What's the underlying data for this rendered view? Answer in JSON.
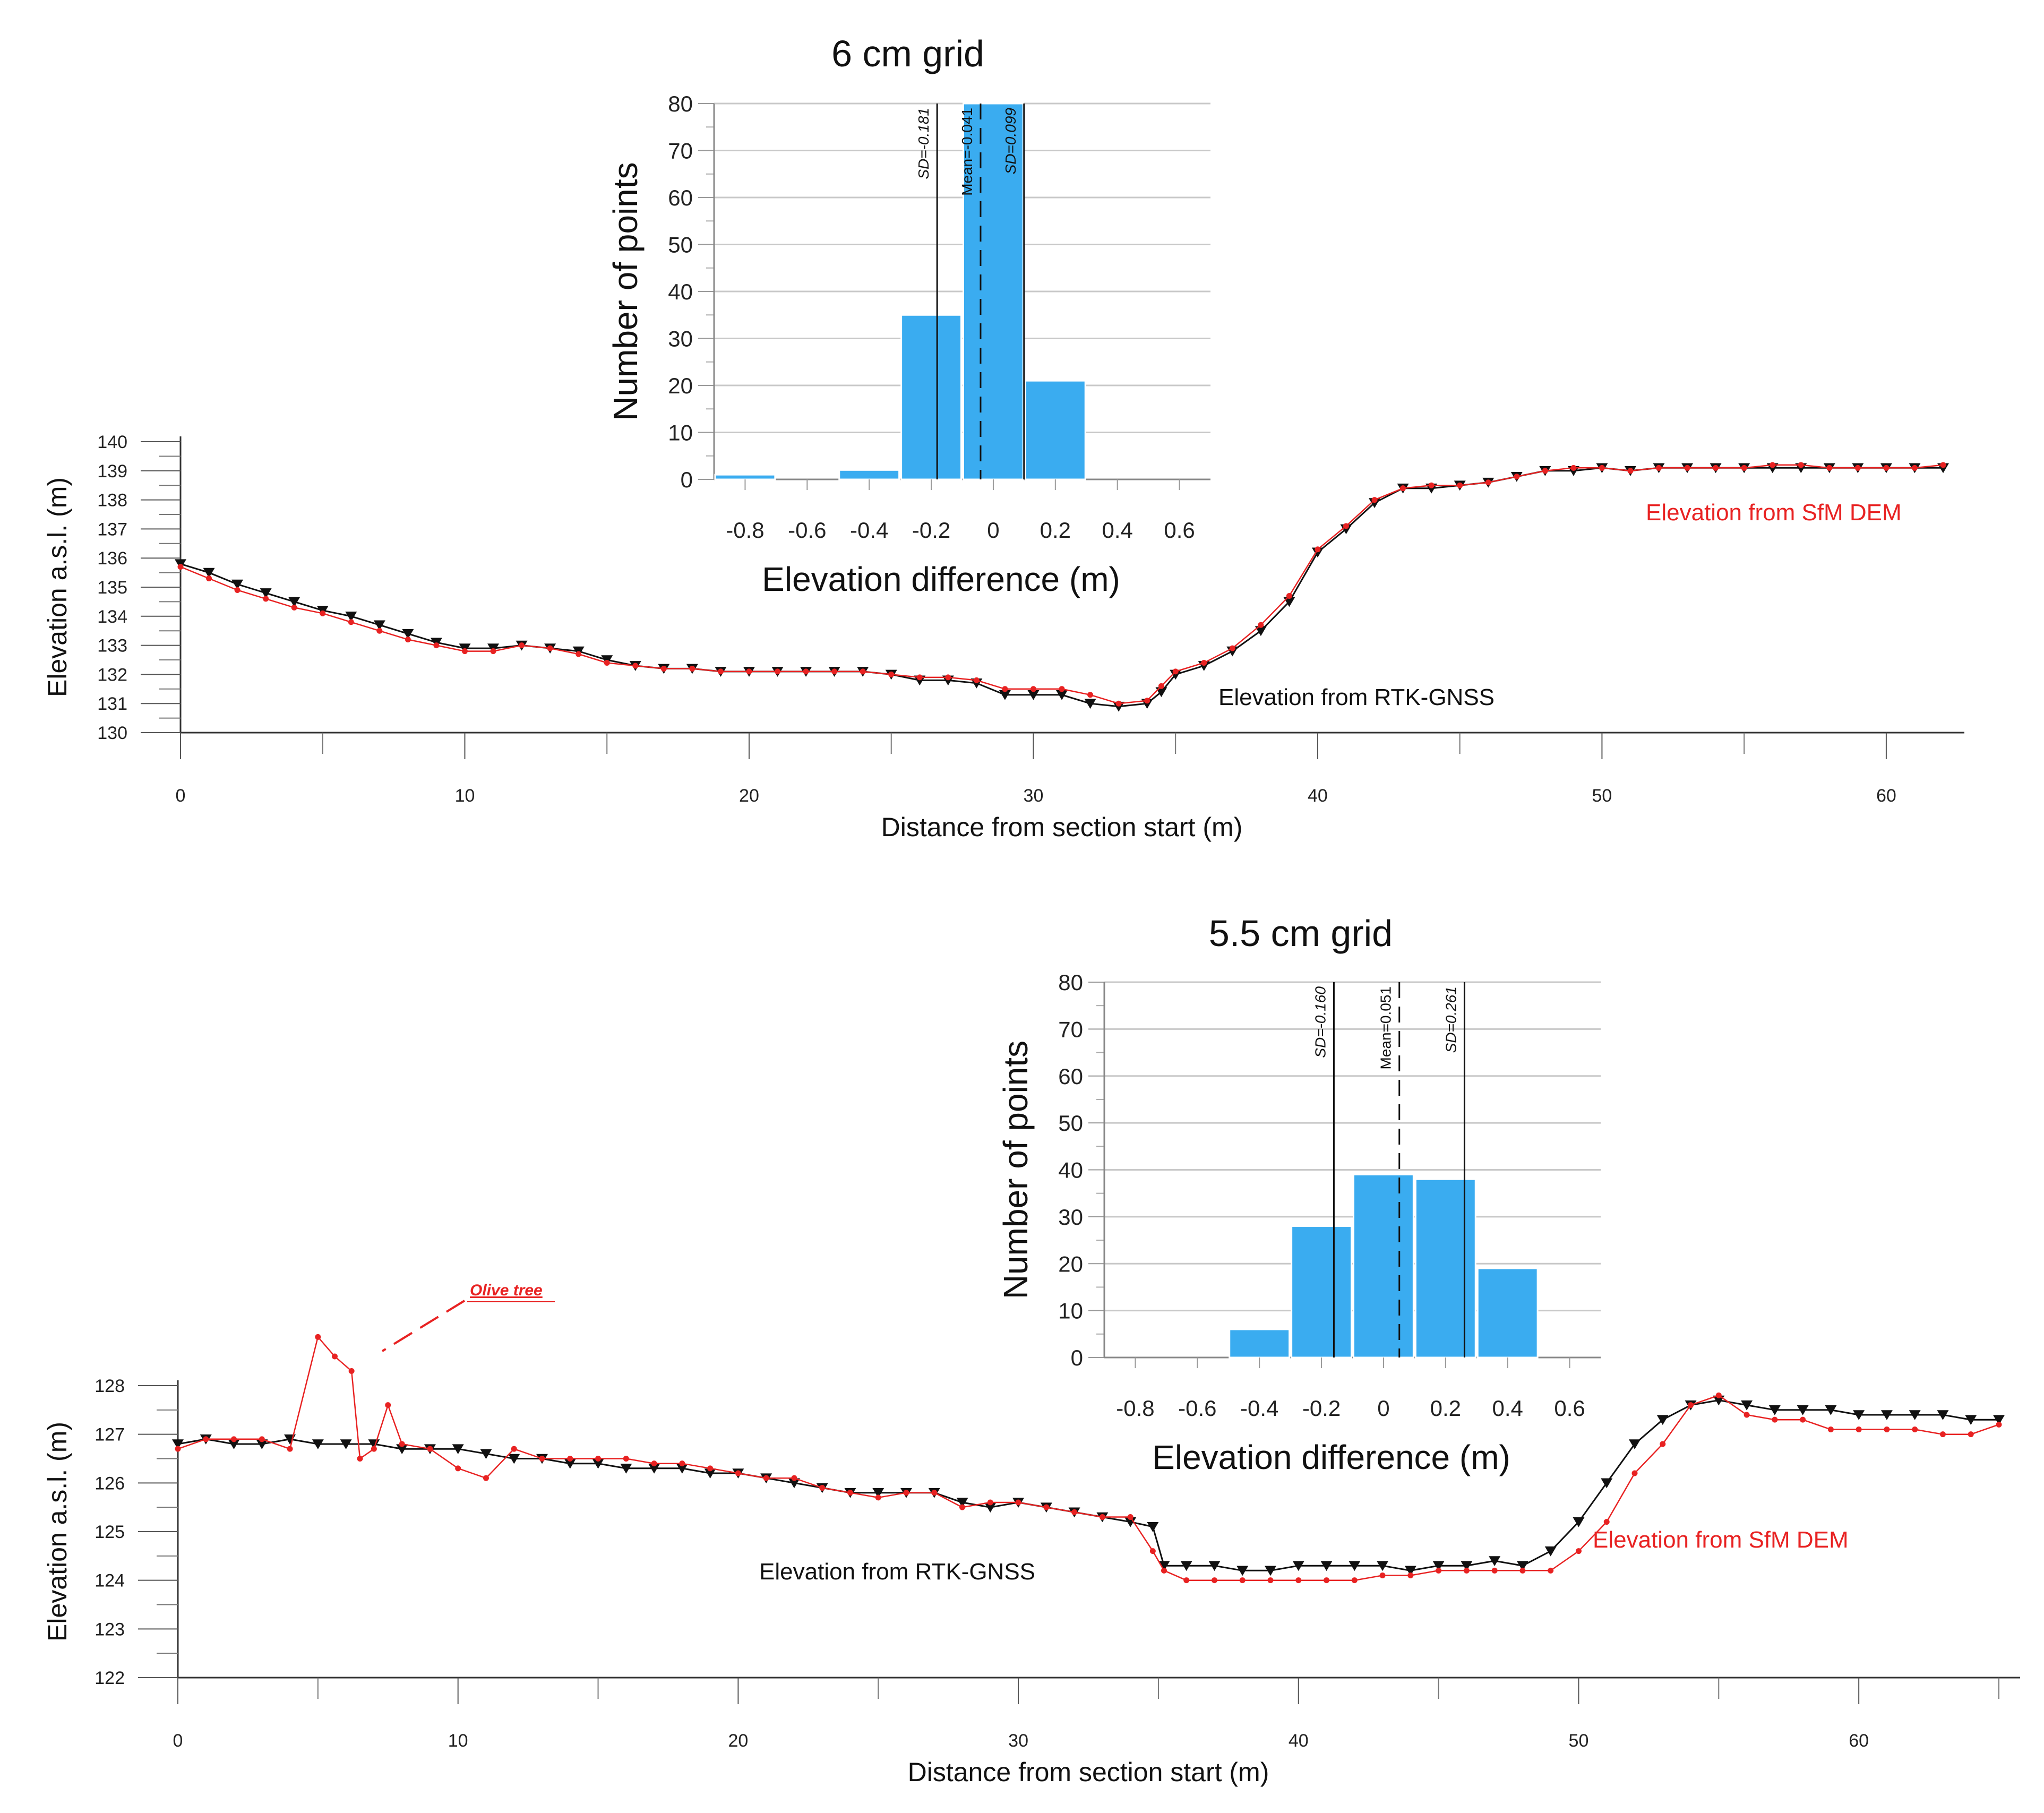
{
  "chart_data": [
    {
      "type": "line",
      "panel": "top-profile",
      "xlabel": "Distance from section start (m)",
      "ylabel": "Elevation a.s.l. (m)",
      "xlim": [
        0,
        62
      ],
      "ylim": [
        130,
        140
      ],
      "xticks": [
        0,
        10,
        20,
        30,
        40,
        50,
        60
      ],
      "yticks": [
        130,
        131,
        132,
        133,
        134,
        135,
        136,
        137,
        138,
        139,
        140
      ],
      "series": [
        {
          "name": "Elevation from RTK-GNSS",
          "label": "Elevation from RTK-GNSS",
          "color": "#111111",
          "marker": "triangle-down",
          "x": [
            0,
            1,
            2,
            3,
            4,
            5,
            6,
            7,
            8,
            9,
            10,
            11,
            12,
            13,
            14,
            15,
            16,
            17,
            18,
            19,
            20,
            21,
            22,
            23,
            24,
            25,
            26,
            27,
            28,
            29,
            30,
            31,
            32,
            33,
            34,
            34.5,
            35,
            36,
            37,
            38,
            39,
            40,
            41,
            42,
            43,
            44,
            45,
            46,
            47,
            48,
            49,
            50,
            51,
            52,
            53,
            54,
            55,
            56,
            57,
            58,
            59,
            60,
            61,
            62
          ],
          "y": [
            135.8,
            135.5,
            135.1,
            134.8,
            134.5,
            134.2,
            134.0,
            133.7,
            133.4,
            133.1,
            132.9,
            132.9,
            133.0,
            132.9,
            132.8,
            132.5,
            132.3,
            132.2,
            132.2,
            132.1,
            132.1,
            132.1,
            132.1,
            132.1,
            132.1,
            132.0,
            131.8,
            131.8,
            131.7,
            131.3,
            131.3,
            131.3,
            131.0,
            130.9,
            131.0,
            131.4,
            132.0,
            132.3,
            132.8,
            133.5,
            134.5,
            136.2,
            137.0,
            137.9,
            138.4,
            138.4,
            138.5,
            138.6,
            138.8,
            139.0,
            139.0,
            139.1,
            139.0,
            139.1,
            139.1,
            139.1,
            139.1,
            139.1,
            139.1,
            139.1,
            139.1,
            139.1,
            139.1,
            139.1
          ]
        },
        {
          "name": "Elevation from SfM DEM",
          "label": "Elevation from SfM DEM",
          "color": "#e82222",
          "marker": "dot",
          "x": [
            0,
            1,
            2,
            3,
            4,
            5,
            6,
            7,
            8,
            9,
            10,
            11,
            12,
            13,
            14,
            15,
            16,
            17,
            18,
            19,
            20,
            21,
            22,
            23,
            24,
            25,
            26,
            27,
            28,
            29,
            30,
            31,
            32,
            33,
            34,
            34.5,
            35,
            36,
            37,
            38,
            39,
            40,
            41,
            42,
            43,
            44,
            45,
            46,
            47,
            48,
            49,
            50,
            51,
            52,
            53,
            54,
            55,
            56,
            57,
            58,
            59,
            60,
            61,
            62
          ],
          "y": [
            135.7,
            135.3,
            134.9,
            134.6,
            134.3,
            134.1,
            133.8,
            133.5,
            133.2,
            133.0,
            132.8,
            132.8,
            133.0,
            132.9,
            132.7,
            132.4,
            132.3,
            132.2,
            132.2,
            132.1,
            132.1,
            132.1,
            132.1,
            132.1,
            132.1,
            132.0,
            131.9,
            131.9,
            131.8,
            131.5,
            131.5,
            131.5,
            131.3,
            131.0,
            131.1,
            131.6,
            132.1,
            132.4,
            132.9,
            133.7,
            134.7,
            136.3,
            137.1,
            138.0,
            138.4,
            138.5,
            138.5,
            138.6,
            138.8,
            139.0,
            139.1,
            139.1,
            139.0,
            139.1,
            139.1,
            139.1,
            139.1,
            139.2,
            139.2,
            139.1,
            139.1,
            139.1,
            139.1,
            139.2
          ]
        }
      ]
    },
    {
      "type": "bar",
      "panel": "top-histogram",
      "title": "6 cm grid",
      "xlabel": "Elevation difference (m)",
      "ylabel": "Number of points",
      "xlim": [
        -0.9,
        0.7
      ],
      "ylim": [
        0,
        80
      ],
      "xticks": [
        -0.8,
        -0.6,
        -0.4,
        -0.2,
        0,
        0.2,
        0.4,
        0.6
      ],
      "xtick_labels": [
        "-0.8",
        "-0.6",
        "-0.4",
        "-0.2",
        "0",
        "0.2",
        "0.4",
        "0.6"
      ],
      "yticks": [
        0,
        10,
        20,
        30,
        40,
        50,
        60,
        70,
        80
      ],
      "bin_edges": [
        -0.9,
        -0.7,
        -0.5,
        -0.3,
        -0.1,
        0.1,
        0.3,
        0.5,
        0.7
      ],
      "values": [
        1,
        0,
        2,
        35,
        80,
        21,
        0,
        0
      ],
      "bar_color": "#3aacf0",
      "lines": [
        {
          "x": -0.181,
          "label": "SD=-0.181",
          "style": "solid"
        },
        {
          "x": -0.041,
          "label": "Mean=-0.041",
          "style": "dashed"
        },
        {
          "x": 0.099,
          "label": "SD=0.099",
          "style": "solid"
        }
      ]
    },
    {
      "type": "line",
      "panel": "bottom-profile",
      "xlabel": "Distance from section start (m)",
      "ylabel": "Elevation a.s.l. (m)",
      "xlim": [
        0,
        65
      ],
      "ylim": [
        122,
        128
      ],
      "xticks": [
        0,
        10,
        20,
        30,
        40,
        50,
        60
      ],
      "yticks": [
        122,
        123,
        124,
        125,
        126,
        127,
        128
      ],
      "annotation": "Olive tree",
      "series": [
        {
          "name": "Elevation from RTK-GNSS",
          "label": "Elevation from RTK-GNSS",
          "color": "#111111",
          "marker": "triangle-down",
          "x": [
            0,
            1,
            2,
            3,
            4,
            5,
            6,
            7,
            8,
            9,
            10,
            11,
            12,
            13,
            14,
            15,
            16,
            17,
            18,
            19,
            20,
            21,
            22,
            23,
            24,
            25,
            26,
            27,
            28,
            29,
            30,
            31,
            32,
            33,
            34,
            34.8,
            35.2,
            36,
            37,
            38,
            39,
            40,
            41,
            42,
            43,
            44,
            45,
            46,
            47,
            48,
            49,
            50,
            51,
            52,
            53,
            54,
            55,
            56,
            57,
            58,
            59,
            60,
            61,
            62,
            63,
            64,
            65
          ],
          "y": [
            126.8,
            126.9,
            126.8,
            126.8,
            126.9,
            126.8,
            126.8,
            126.8,
            126.7,
            126.7,
            126.7,
            126.6,
            126.5,
            126.5,
            126.4,
            126.4,
            126.3,
            126.3,
            126.3,
            126.2,
            126.2,
            126.1,
            126.0,
            125.9,
            125.8,
            125.8,
            125.8,
            125.8,
            125.6,
            125.5,
            125.6,
            125.5,
            125.4,
            125.3,
            125.2,
            125.1,
            124.3,
            124.3,
            124.3,
            124.2,
            124.2,
            124.3,
            124.3,
            124.3,
            124.3,
            124.2,
            124.3,
            124.3,
            124.4,
            124.3,
            124.6,
            125.2,
            126.0,
            126.8,
            127.3,
            127.6,
            127.7,
            127.6,
            127.5,
            127.5,
            127.5,
            127.4,
            127.4,
            127.4,
            127.4,
            127.3,
            127.3
          ]
        },
        {
          "name": "Elevation from SfM DEM",
          "label": "Elevation from SfM DEM",
          "color": "#e82222",
          "marker": "dot",
          "x": [
            0,
            1,
            2,
            3,
            4,
            5,
            5.6,
            6.2,
            6.5,
            7,
            7.5,
            8,
            9,
            10,
            11,
            12,
            13,
            14,
            15,
            16,
            17,
            18,
            19,
            20,
            21,
            22,
            23,
            24,
            25,
            26,
            27,
            28,
            29,
            30,
            31,
            32,
            33,
            34,
            34.8,
            35.2,
            36,
            37,
            38,
            39,
            40,
            41,
            42,
            43,
            44,
            45,
            46,
            47,
            48,
            49,
            50,
            51,
            52,
            53,
            54,
            55,
            56,
            57,
            58,
            59,
            60,
            61,
            62,
            63,
            64,
            65
          ],
          "y": [
            126.7,
            126.9,
            126.9,
            126.9,
            126.7,
            129.0,
            128.6,
            128.3,
            126.5,
            126.7,
            127.6,
            126.8,
            126.7,
            126.3,
            126.1,
            126.7,
            126.5,
            126.5,
            126.5,
            126.5,
            126.4,
            126.4,
            126.3,
            126.2,
            126.1,
            126.1,
            125.9,
            125.8,
            125.7,
            125.8,
            125.8,
            125.5,
            125.6,
            125.6,
            125.5,
            125.4,
            125.3,
            125.3,
            124.6,
            124.2,
            124.0,
            124.0,
            124.0,
            124.0,
            124.0,
            124.0,
            124.0,
            124.1,
            124.1,
            124.2,
            124.2,
            124.2,
            124.2,
            124.2,
            124.6,
            125.2,
            126.2,
            126.8,
            127.6,
            127.8,
            127.4,
            127.3,
            127.3,
            127.1,
            127.1,
            127.1,
            127.1,
            127.0,
            127.0,
            127.2
          ]
        }
      ]
    },
    {
      "type": "bar",
      "panel": "bottom-histogram",
      "title": "5.5 cm grid",
      "xlabel": "Elevation difference (m)",
      "ylabel": "Number of points",
      "xlim": [
        -0.9,
        0.7
      ],
      "ylim": [
        0,
        80
      ],
      "xticks": [
        -0.8,
        -0.6,
        -0.4,
        -0.2,
        0,
        0.2,
        0.4,
        0.6
      ],
      "xtick_labels": [
        "-0.8",
        "-0.6",
        "-0.4",
        "-0.2",
        "0",
        "0.2",
        "0.4",
        "0.6"
      ],
      "yticks": [
        0,
        10,
        20,
        30,
        40,
        50,
        60,
        70,
        80
      ],
      "bin_edges": [
        -0.9,
        -0.7,
        -0.5,
        -0.3,
        -0.1,
        0.1,
        0.3,
        0.5,
        0.7
      ],
      "values": [
        0,
        0,
        6,
        28,
        39,
        38,
        19,
        0
      ],
      "bar_color": "#3aacf0",
      "lines": [
        {
          "x": -0.16,
          "label": "SD=-0.160",
          "style": "solid"
        },
        {
          "x": 0.051,
          "label": "Mean=0.051",
          "style": "dashed"
        },
        {
          "x": 0.261,
          "label": "SD=0.261",
          "style": "solid"
        }
      ]
    }
  ]
}
